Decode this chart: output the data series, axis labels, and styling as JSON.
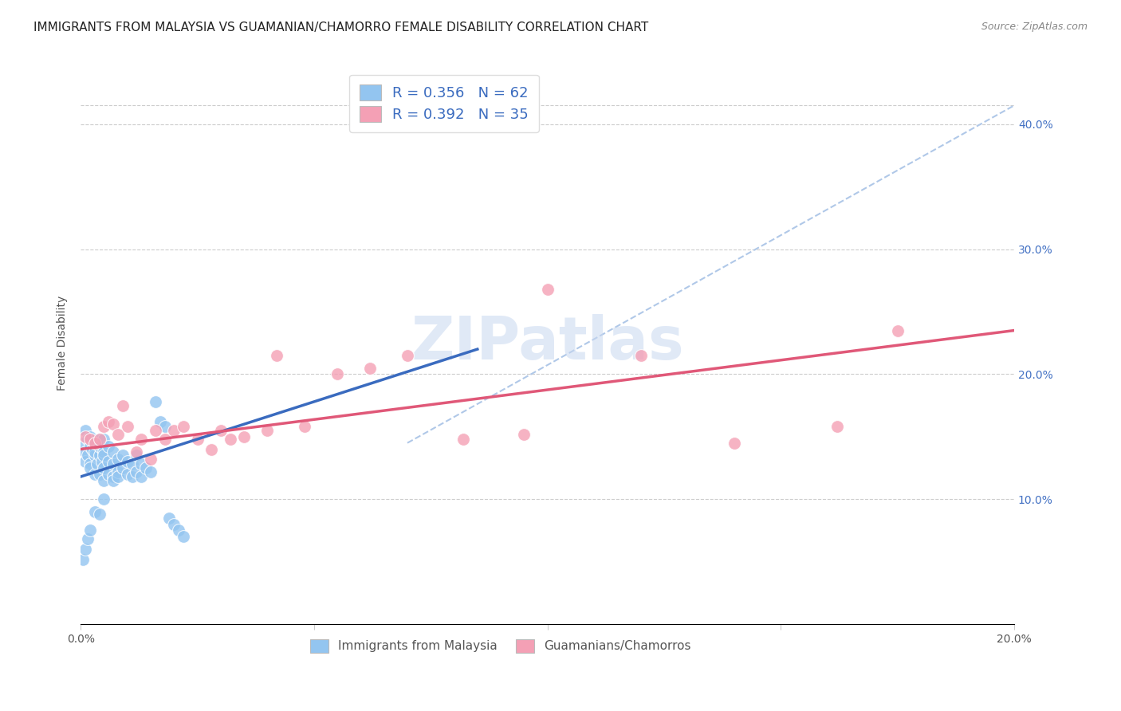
{
  "title": "IMMIGRANTS FROM MALAYSIA VS GUAMANIAN/CHAMORRO FEMALE DISABILITY CORRELATION CHART",
  "source": "Source: ZipAtlas.com",
  "ylabel": "Female Disability",
  "xlim": [
    0.0,
    0.2
  ],
  "ylim": [
    0.0,
    0.45
  ],
  "x_tick_positions": [
    0.0,
    0.05,
    0.1,
    0.15,
    0.2
  ],
  "x_tick_labels": [
    "0.0%",
    "",
    "",
    "",
    "20.0%"
  ],
  "y_tick_positions": [
    0.0,
    0.1,
    0.2,
    0.3,
    0.4
  ],
  "y_tick_labels_right": [
    "",
    "10.0%",
    "20.0%",
    "30.0%",
    "40.0%"
  ],
  "blue_R": 0.356,
  "blue_N": 62,
  "pink_R": 0.392,
  "pink_N": 35,
  "blue_color": "#93c5f0",
  "pink_color": "#f4a0b5",
  "blue_line_color": "#3a6bbf",
  "pink_line_color": "#e05878",
  "dashed_line_color": "#b0c8e8",
  "watermark": "ZIPatlas",
  "blue_points_x": [
    0.0005,
    0.001,
    0.001,
    0.001,
    0.0015,
    0.0015,
    0.002,
    0.002,
    0.002,
    0.002,
    0.0025,
    0.003,
    0.003,
    0.003,
    0.003,
    0.0035,
    0.004,
    0.004,
    0.004,
    0.004,
    0.0045,
    0.005,
    0.005,
    0.005,
    0.005,
    0.005,
    0.006,
    0.006,
    0.006,
    0.007,
    0.007,
    0.007,
    0.007,
    0.008,
    0.008,
    0.008,
    0.009,
    0.009,
    0.01,
    0.01,
    0.011,
    0.011,
    0.012,
    0.012,
    0.013,
    0.013,
    0.014,
    0.015,
    0.016,
    0.017,
    0.018,
    0.019,
    0.02,
    0.021,
    0.022,
    0.0005,
    0.001,
    0.0015,
    0.002,
    0.003,
    0.004,
    0.005
  ],
  "blue_points_y": [
    0.145,
    0.138,
    0.155,
    0.13,
    0.148,
    0.135,
    0.142,
    0.128,
    0.15,
    0.125,
    0.14,
    0.135,
    0.145,
    0.12,
    0.138,
    0.128,
    0.148,
    0.135,
    0.12,
    0.142,
    0.13,
    0.138,
    0.125,
    0.148,
    0.115,
    0.135,
    0.12,
    0.13,
    0.142,
    0.118,
    0.128,
    0.138,
    0.115,
    0.122,
    0.132,
    0.118,
    0.125,
    0.135,
    0.12,
    0.13,
    0.118,
    0.128,
    0.122,
    0.135,
    0.118,
    0.128,
    0.125,
    0.122,
    0.178,
    0.162,
    0.158,
    0.085,
    0.08,
    0.075,
    0.07,
    0.052,
    0.06,
    0.068,
    0.075,
    0.09,
    0.088,
    0.1
  ],
  "pink_points_x": [
    0.001,
    0.002,
    0.003,
    0.004,
    0.005,
    0.006,
    0.007,
    0.008,
    0.009,
    0.01,
    0.012,
    0.013,
    0.015,
    0.016,
    0.018,
    0.02,
    0.022,
    0.025,
    0.028,
    0.03,
    0.032,
    0.035,
    0.04,
    0.042,
    0.048,
    0.055,
    0.062,
    0.07,
    0.082,
    0.095,
    0.1,
    0.12,
    0.14,
    0.162,
    0.175
  ],
  "pink_points_y": [
    0.15,
    0.148,
    0.145,
    0.148,
    0.158,
    0.162,
    0.16,
    0.152,
    0.175,
    0.158,
    0.138,
    0.148,
    0.132,
    0.155,
    0.148,
    0.155,
    0.158,
    0.148,
    0.14,
    0.155,
    0.148,
    0.15,
    0.155,
    0.215,
    0.158,
    0.2,
    0.205,
    0.215,
    0.148,
    0.152,
    0.268,
    0.215,
    0.145,
    0.158,
    0.235
  ],
  "blue_line_x": [
    0.0,
    0.085
  ],
  "blue_line_y": [
    0.118,
    0.22
  ],
  "pink_line_x": [
    0.0,
    0.2
  ],
  "pink_line_y": [
    0.14,
    0.235
  ],
  "dash_line_x": [
    0.07,
    0.2
  ],
  "dash_line_y": [
    0.145,
    0.415
  ],
  "title_fontsize": 11,
  "tick_fontsize": 10,
  "legend_fontsize": 13,
  "cat_legend_fontsize": 11
}
